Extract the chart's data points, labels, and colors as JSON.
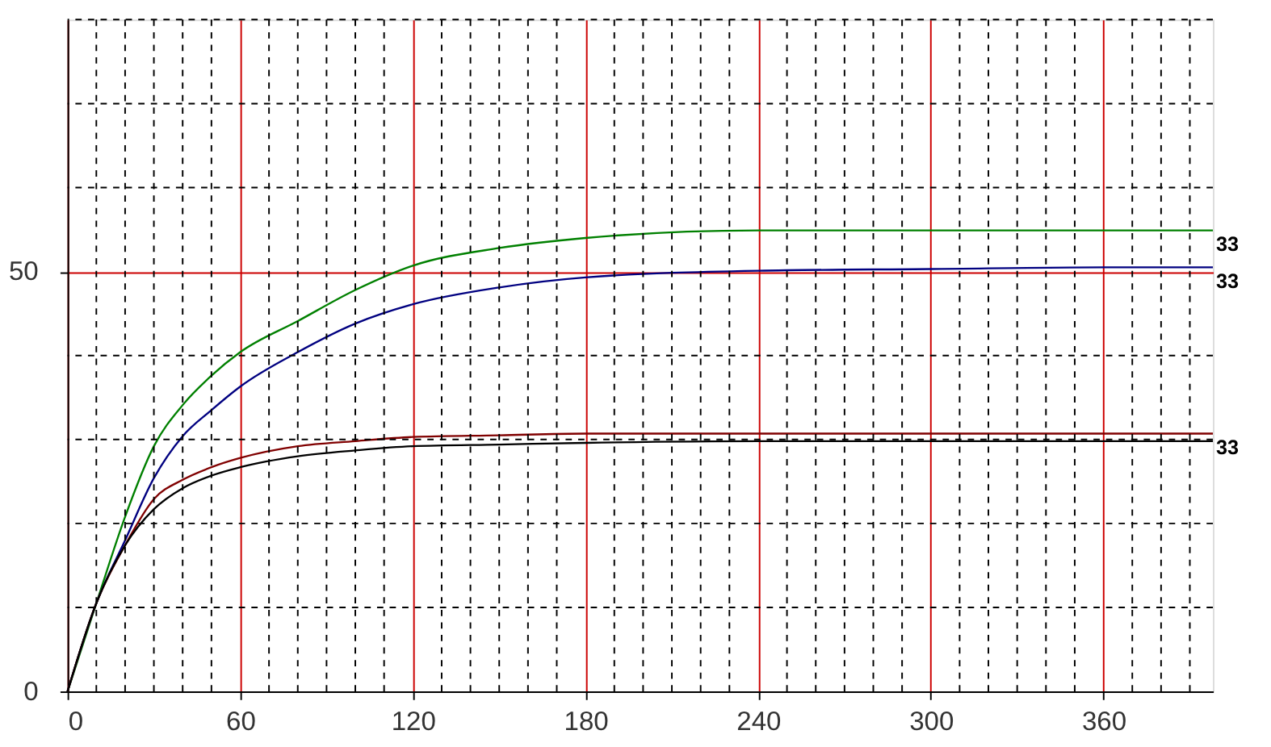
{
  "chart_data": {
    "type": "line",
    "x": [
      0,
      10,
      20,
      30,
      40,
      50,
      60,
      80,
      100,
      120,
      150,
      180,
      240,
      300,
      360,
      398
    ],
    "series": [
      {
        "color": "#008000",
        "values": [
          0,
          10.5,
          20.8,
          29.2,
          34.1,
          37.6,
          40.4,
          44.1,
          47.8,
          50.7,
          52.8,
          54.0,
          54.9,
          54.9,
          54.9,
          54.9
        ]
      },
      {
        "color": "#000080",
        "values": [
          0,
          10.5,
          18.0,
          25.4,
          30.4,
          33.5,
          36.3,
          40.4,
          43.8,
          46.1,
          48.1,
          49.3,
          50.1,
          50.3,
          50.5,
          50.5
        ]
      },
      {
        "color": "#800000",
        "values": [
          0,
          10.5,
          17.4,
          22.9,
          25.2,
          26.7,
          27.8,
          29.2,
          29.8,
          30.3,
          30.5,
          30.7,
          30.7,
          30.7,
          30.7,
          30.7
        ]
      },
      {
        "color": "#000000",
        "values": [
          0,
          10.5,
          17.4,
          21.7,
          24.2,
          25.7,
          26.7,
          28.0,
          28.7,
          29.2,
          29.4,
          29.6,
          29.8,
          29.8,
          29.8,
          29.8
        ]
      }
    ],
    "xlim": [
      0,
      398
    ],
    "xticks": [
      0,
      60,
      120,
      180,
      240,
      300,
      360
    ],
    "ylim": [
      0,
      80
    ],
    "yticks": [
      0,
      50
    ],
    "grid": true,
    "legend": false,
    "marker": "none",
    "line_style": "solid",
    "annotations": [
      "33",
      "33",
      "33"
    ]
  }
}
